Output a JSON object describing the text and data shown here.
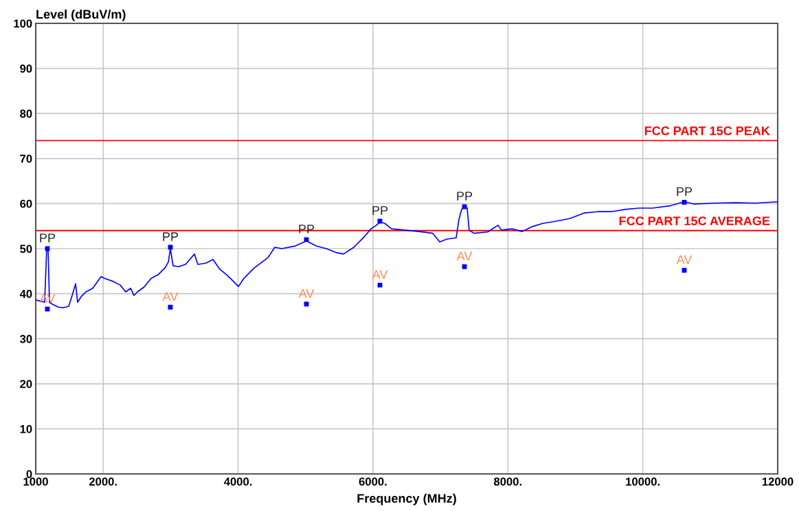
{
  "chart_data": {
    "type": "line",
    "xlabel": "Frequency (MHz)",
    "ylabel": "Level (dBuV/m)",
    "xlim": [
      1000,
      12000
    ],
    "ylim": [
      0,
      100
    ],
    "xticks": [
      {
        "value": 1000,
        "label": "1000"
      },
      {
        "value": 2000,
        "label": "2000."
      },
      {
        "value": 4000,
        "label": "4000."
      },
      {
        "value": 6000,
        "label": "6000."
      },
      {
        "value": 8000,
        "label": "8000."
      },
      {
        "value": 10000,
        "label": "10000."
      },
      {
        "value": 12000,
        "label": "12000"
      }
    ],
    "yticks": [
      0,
      10,
      20,
      30,
      40,
      50,
      60,
      70,
      80,
      90,
      100
    ],
    "grid": true,
    "legend": false,
    "marker": "none",
    "line_style": "solid",
    "ref_lines": [
      {
        "axis": "y",
        "value": 74,
        "label": "FCC PART 15C PEAK",
        "color": "#ff0000"
      },
      {
        "axis": "y",
        "value": 54,
        "label": "FCC PART 15C AVERAGE",
        "color": "#ff0000"
      }
    ],
    "series": [
      {
        "color": "#0000ff",
        "x": [
          1000,
          1061,
          1132,
          1163,
          1183,
          1204,
          1244,
          1336,
          1407,
          1489,
          1540,
          1591,
          1621,
          1672,
          1744,
          1845,
          1968,
          2019,
          2151,
          2253,
          2334,
          2406,
          2456,
          2507,
          2609,
          2711,
          2813,
          2915,
          2966,
          2996,
          3037,
          3118,
          3220,
          3353,
          3404,
          3526,
          3628,
          3730,
          3831,
          3933,
          4005,
          4086,
          4239,
          4443,
          4544,
          4646,
          4850,
          5013,
          5155,
          5308,
          5461,
          5563,
          5716,
          5869,
          5970,
          6052,
          6103,
          6174,
          6276,
          6480,
          6683,
          6887,
          6989,
          7091,
          7233,
          7273,
          7314,
          7355,
          7396,
          7426,
          7498,
          7701,
          7854,
          7905,
          8058,
          8211,
          8364,
          8517,
          8720,
          8924,
          9128,
          9331,
          9535,
          9739,
          9942,
          10146,
          10401,
          10615,
          10757,
          11063,
          11368,
          11674,
          12000
        ],
        "values": [
          38.6,
          38.4,
          38.1,
          50.0,
          50.0,
          38.1,
          37.7,
          37.0,
          36.9,
          37.2,
          39.6,
          42.2,
          38.1,
          39.3,
          40.4,
          41.2,
          43.8,
          43.4,
          42.7,
          41.9,
          40.4,
          41.2,
          39.6,
          40.4,
          41.5,
          43.4,
          44.2,
          45.7,
          47.0,
          50.0,
          46.2,
          46.0,
          46.5,
          48.8,
          46.5,
          46.8,
          47.6,
          45.4,
          44.2,
          42.7,
          41.6,
          43.4,
          45.7,
          48.0,
          50.3,
          50.0,
          50.6,
          51.7,
          50.6,
          50.0,
          49.1,
          48.8,
          50.3,
          52.6,
          54.4,
          55.2,
          55.9,
          55.6,
          54.4,
          54.1,
          53.8,
          53.4,
          51.5,
          52.1,
          52.4,
          56.4,
          58.7,
          59.5,
          59.0,
          54.1,
          53.4,
          53.7,
          55.2,
          54.1,
          54.4,
          53.8,
          54.9,
          55.6,
          56.1,
          56.7,
          57.9,
          58.2,
          58.2,
          58.7,
          59.0,
          59.0,
          59.5,
          60.4,
          59.9,
          60.1,
          60.2,
          60.1,
          60.4
        ]
      },
      {
        "name": "PP",
        "type": "scatter",
        "marker": "square",
        "color": "#0000ff",
        "x": [
          1173,
          2996,
          5013,
          6103,
          7356,
          10615
        ],
        "values": [
          50.0,
          50.3,
          52.0,
          56.1,
          59.3,
          60.3
        ]
      },
      {
        "name": "AV",
        "type": "scatter",
        "marker": "square",
        "color": "#0000ff",
        "x": [
          1173,
          2996,
          5013,
          6103,
          7356,
          10615
        ],
        "values": [
          36.6,
          37.0,
          37.7,
          41.9,
          46.0,
          45.2
        ]
      }
    ]
  }
}
